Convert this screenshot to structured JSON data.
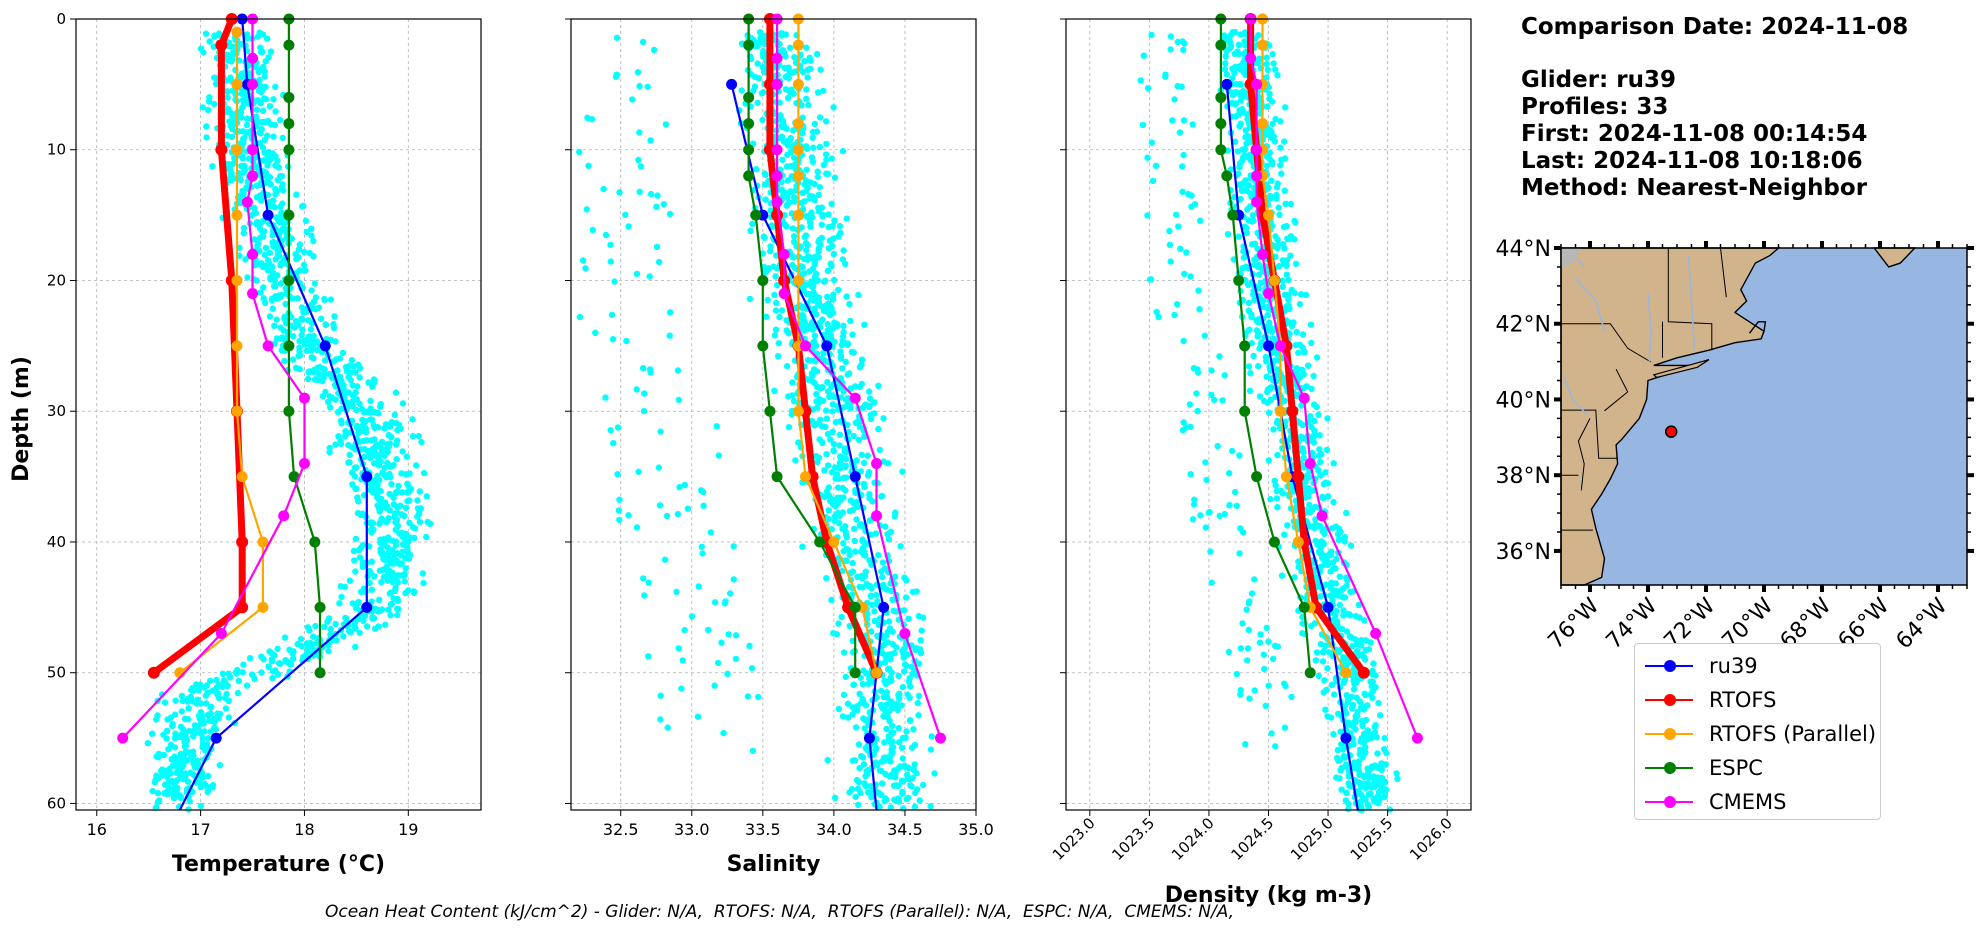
{
  "info": {
    "comparison": "Comparison Date: 2024-11-08",
    "glider": "Glider: ru39",
    "profiles": "Profiles: 33",
    "first": "First: 2024-11-08 00:14:54",
    "last": "Last: 2024-11-08 10:18:06",
    "method": "Method: Nearest-Neighbor"
  },
  "footer": "Ocean Heat Content (kJ/cm^2) - Glider: N/A,  RTOFS: N/A,  RTOFS (Parallel): N/A,  ESPC: N/A,  CMEMS: N/A,",
  "legend": [
    {
      "name": "ru39",
      "color": "#0000ff"
    },
    {
      "name": "RTOFS",
      "color": "#ff0000"
    },
    {
      "name": "RTOFS (Parallel)",
      "color": "#ffa500"
    },
    {
      "name": "ESPC",
      "color": "#008000"
    },
    {
      "name": "CMEMS",
      "color": "#ff00ff"
    }
  ],
  "chart_data": [
    {
      "type": "line",
      "xlabel": "Temperature (°C)",
      "ylabel": "Depth (m)",
      "xlim": [
        15.8,
        19.7
      ],
      "ylim": [
        60.5,
        0
      ],
      "xticks": [
        16,
        17,
        18,
        19
      ],
      "yticks": [
        0,
        10,
        20,
        30,
        40,
        50,
        60
      ],
      "grid": true,
      "glider_scatter": {
        "color": "#00ffff",
        "center_by_depth": [
          [
            1,
            17.35
          ],
          [
            10,
            17.45
          ],
          [
            20,
            17.8
          ],
          [
            25,
            18.0
          ],
          [
            30,
            18.6
          ],
          [
            35,
            18.75
          ],
          [
            40,
            18.85
          ],
          [
            45,
            18.7
          ],
          [
            48,
            18.1
          ],
          [
            50,
            17.5
          ],
          [
            52,
            17.0
          ],
          [
            55,
            16.9
          ],
          [
            58,
            16.8
          ],
          [
            60,
            16.75
          ]
        ],
        "spread": 0.35
      },
      "series": [
        {
          "name": "ru39",
          "color": "#0000ff",
          "points": [
            [
              17.4,
              0
            ],
            [
              17.45,
              5
            ],
            [
              17.65,
              15
            ],
            [
              18.2,
              25
            ],
            [
              18.6,
              35
            ],
            [
              18.6,
              45
            ],
            [
              17.15,
              55
            ],
            [
              16.8,
              60.5
            ]
          ]
        },
        {
          "name": "RTOFS",
          "color": "#ff0000",
          "width": 7,
          "points": [
            [
              17.3,
              0
            ],
            [
              17.2,
              2
            ],
            [
              17.2,
              10
            ],
            [
              17.3,
              20
            ],
            [
              17.35,
              30
            ],
            [
              17.4,
              40
            ],
            [
              17.4,
              45
            ],
            [
              16.55,
              50
            ]
          ]
        },
        {
          "name": "RTOFS (Parallel)",
          "color": "#ffa500",
          "points": [
            [
              17.35,
              1
            ],
            [
              17.35,
              5
            ],
            [
              17.35,
              10
            ],
            [
              17.35,
              15
            ],
            [
              17.35,
              20
            ],
            [
              17.35,
              25
            ],
            [
              17.35,
              30
            ],
            [
              17.4,
              35
            ],
            [
              17.6,
              40
            ],
            [
              17.6,
              45
            ],
            [
              16.8,
              50
            ]
          ]
        },
        {
          "name": "ESPC",
          "color": "#008000",
          "points": [
            [
              17.85,
              0
            ],
            [
              17.85,
              2
            ],
            [
              17.85,
              6
            ],
            [
              17.85,
              8
            ],
            [
              17.85,
              10
            ],
            [
              17.85,
              15
            ],
            [
              17.85,
              20
            ],
            [
              17.85,
              25
            ],
            [
              17.85,
              30
            ],
            [
              17.9,
              35
            ],
            [
              18.1,
              40
            ],
            [
              18.15,
              45
            ],
            [
              18.15,
              50
            ]
          ]
        },
        {
          "name": "CMEMS",
          "color": "#ff00ff",
          "points": [
            [
              17.5,
              0
            ],
            [
              17.5,
              3
            ],
            [
              17.5,
              5
            ],
            [
              17.5,
              10
            ],
            [
              17.5,
              12
            ],
            [
              17.45,
              14
            ],
            [
              17.5,
              18
            ],
            [
              17.5,
              21
            ],
            [
              17.65,
              25
            ],
            [
              18.0,
              29
            ],
            [
              18.0,
              34
            ],
            [
              17.8,
              38
            ],
            [
              17.2,
              47
            ],
            [
              16.25,
              55
            ]
          ]
        }
      ]
    },
    {
      "type": "line",
      "xlabel": "Salinity",
      "ylabel": "",
      "xlim": [
        32.15,
        35.0
      ],
      "ylim": [
        60.5,
        0
      ],
      "xticks": [
        32.5,
        33.0,
        33.5,
        34.0,
        34.5,
        35.0
      ],
      "grid": true,
      "glider_scatter": {
        "color": "#00ffff",
        "center_by_depth": [
          [
            3,
            33.6
          ],
          [
            10,
            33.7
          ],
          [
            20,
            33.8
          ],
          [
            30,
            34.0
          ],
          [
            40,
            34.15
          ],
          [
            45,
            34.35
          ],
          [
            50,
            34.35
          ],
          [
            55,
            34.35
          ],
          [
            60,
            34.35
          ]
        ],
        "spread": 0.3,
        "fresh_branch": true
      },
      "series": [
        {
          "name": "ru39",
          "color": "#0000ff",
          "points": [
            [
              33.28,
              5
            ],
            [
              33.5,
              15
            ],
            [
              33.95,
              25
            ],
            [
              34.15,
              35
            ],
            [
              34.35,
              45
            ],
            [
              34.25,
              55
            ],
            [
              34.3,
              60.5
            ]
          ]
        },
        {
          "name": "RTOFS",
          "color": "#ff0000",
          "width": 7,
          "points": [
            [
              33.55,
              0
            ],
            [
              33.55,
              5
            ],
            [
              33.55,
              10
            ],
            [
              33.6,
              15
            ],
            [
              33.65,
              20
            ],
            [
              33.75,
              25
            ],
            [
              33.8,
              30
            ],
            [
              33.85,
              35
            ],
            [
              33.95,
              40
            ],
            [
              34.1,
              45
            ],
            [
              34.3,
              50
            ]
          ]
        },
        {
          "name": "RTOFS (Parallel)",
          "color": "#ffa500",
          "points": [
            [
              33.75,
              0
            ],
            [
              33.75,
              2
            ],
            [
              33.75,
              5
            ],
            [
              33.75,
              8
            ],
            [
              33.75,
              10
            ],
            [
              33.75,
              12
            ],
            [
              33.75,
              15
            ],
            [
              33.75,
              20
            ],
            [
              33.75,
              25
            ],
            [
              33.75,
              30
            ],
            [
              33.8,
              35
            ],
            [
              34.0,
              40
            ],
            [
              34.2,
              45
            ],
            [
              34.3,
              50
            ]
          ]
        },
        {
          "name": "ESPC",
          "color": "#008000",
          "points": [
            [
              33.4,
              0
            ],
            [
              33.4,
              2
            ],
            [
              33.4,
              6
            ],
            [
              33.4,
              8
            ],
            [
              33.4,
              10
            ],
            [
              33.4,
              12
            ],
            [
              33.45,
              15
            ],
            [
              33.5,
              20
            ],
            [
              33.5,
              25
            ],
            [
              33.55,
              30
            ],
            [
              33.6,
              35
            ],
            [
              33.9,
              40
            ],
            [
              34.15,
              45
            ],
            [
              34.15,
              50
            ]
          ]
        },
        {
          "name": "CMEMS",
          "color": "#ff00ff",
          "points": [
            [
              33.6,
              0
            ],
            [
              33.6,
              3
            ],
            [
              33.6,
              5
            ],
            [
              33.6,
              10
            ],
            [
              33.6,
              12
            ],
            [
              33.6,
              14
            ],
            [
              33.65,
              18
            ],
            [
              33.65,
              21
            ],
            [
              33.8,
              25
            ],
            [
              34.15,
              29
            ],
            [
              34.3,
              34
            ],
            [
              34.3,
              38
            ],
            [
              34.5,
              47
            ],
            [
              34.75,
              55
            ]
          ]
        }
      ]
    },
    {
      "type": "line",
      "xlabel": "Density (kg m-3)",
      "ylabel": "",
      "xlim": [
        1022.8,
        1026.2
      ],
      "ylim": [
        60.5,
        0
      ],
      "xticks": [
        1023.0,
        1023.5,
        1024.0,
        1024.5,
        1025.0,
        1025.5,
        1026.0
      ],
      "grid": true,
      "glider_scatter": {
        "color": "#00ffff",
        "center_by_depth": [
          [
            3,
            1024.3
          ],
          [
            10,
            1024.4
          ],
          [
            20,
            1024.5
          ],
          [
            30,
            1024.7
          ],
          [
            40,
            1024.9
          ],
          [
            45,
            1025.0
          ],
          [
            50,
            1025.2
          ],
          [
            55,
            1025.25
          ],
          [
            60,
            1025.3
          ]
        ],
        "spread": 0.25,
        "fresh_branch": true
      },
      "series": [
        {
          "name": "ru39",
          "color": "#0000ff",
          "points": [
            [
              1024.15,
              5
            ],
            [
              1024.25,
              15
            ],
            [
              1024.5,
              25
            ],
            [
              1024.7,
              35
            ],
            [
              1025.0,
              45
            ],
            [
              1025.15,
              55
            ],
            [
              1025.25,
              60.5
            ]
          ]
        },
        {
          "name": "RTOFS",
          "color": "#ff0000",
          "width": 7,
          "points": [
            [
              1024.35,
              0
            ],
            [
              1024.35,
              5
            ],
            [
              1024.4,
              10
            ],
            [
              1024.45,
              15
            ],
            [
              1024.55,
              20
            ],
            [
              1024.65,
              25
            ],
            [
              1024.7,
              30
            ],
            [
              1024.75,
              35
            ],
            [
              1024.8,
              40
            ],
            [
              1024.9,
              45
            ],
            [
              1025.3,
              50
            ]
          ]
        },
        {
          "name": "RTOFS (Parallel)",
          "color": "#ffa500",
          "points": [
            [
              1024.45,
              0
            ],
            [
              1024.45,
              2
            ],
            [
              1024.45,
              5
            ],
            [
              1024.45,
              8
            ],
            [
              1024.45,
              10
            ],
            [
              1024.45,
              12
            ],
            [
              1024.5,
              15
            ],
            [
              1024.55,
              20
            ],
            [
              1024.6,
              25
            ],
            [
              1024.6,
              30
            ],
            [
              1024.65,
              35
            ],
            [
              1024.75,
              40
            ],
            [
              1024.85,
              45
            ],
            [
              1025.15,
              50
            ]
          ]
        },
        {
          "name": "ESPC",
          "color": "#008000",
          "points": [
            [
              1024.1,
              0
            ],
            [
              1024.1,
              2
            ],
            [
              1024.1,
              6
            ],
            [
              1024.1,
              8
            ],
            [
              1024.1,
              10
            ],
            [
              1024.15,
              12
            ],
            [
              1024.2,
              15
            ],
            [
              1024.25,
              20
            ],
            [
              1024.3,
              25
            ],
            [
              1024.3,
              30
            ],
            [
              1024.4,
              35
            ],
            [
              1024.55,
              40
            ],
            [
              1024.8,
              45
            ],
            [
              1024.85,
              50
            ]
          ]
        },
        {
          "name": "CMEMS",
          "color": "#ff00ff",
          "points": [
            [
              1024.35,
              0
            ],
            [
              1024.35,
              3
            ],
            [
              1024.4,
              5
            ],
            [
              1024.4,
              10
            ],
            [
              1024.4,
              12
            ],
            [
              1024.4,
              14
            ],
            [
              1024.45,
              18
            ],
            [
              1024.5,
              21
            ],
            [
              1024.6,
              25
            ],
            [
              1024.8,
              29
            ],
            [
              1024.85,
              34
            ],
            [
              1024.95,
              38
            ],
            [
              1025.4,
              47
            ],
            [
              1025.75,
              55
            ]
          ]
        }
      ]
    }
  ],
  "map": {
    "lat_labels": [
      "44°N",
      "42°N",
      "40°N",
      "38°N",
      "36°N"
    ],
    "lon_labels": [
      "76°W",
      "74°W",
      "72°W",
      "70°W",
      "68°W",
      "66°W",
      "64°W"
    ],
    "lat_range": [
      35.1,
      44.0
    ],
    "lon_range": [
      -77.0,
      -63.0
    ],
    "land_color": "#d2b48c",
    "ocean_color": "#97b6e1",
    "marker": {
      "lon": -73.2,
      "lat": 39.15,
      "color": "#ff0000"
    }
  }
}
